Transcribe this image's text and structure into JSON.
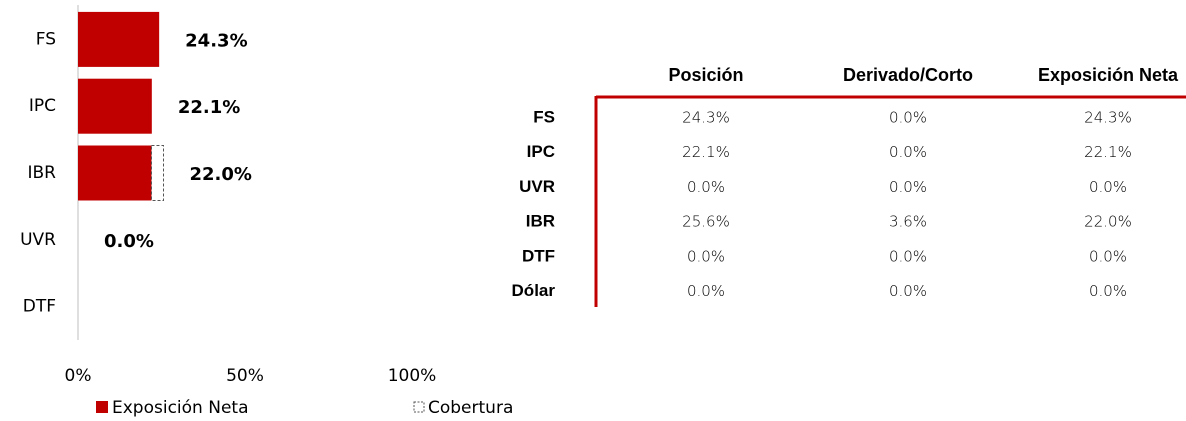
{
  "chart_data": {
    "type": "bar",
    "orientation": "horizontal",
    "stacked": true,
    "categories": [
      "FS",
      "IPC",
      "IBR",
      "UVR",
      "DTF"
    ],
    "series": [
      {
        "name": "Exposición Neta",
        "color": "#c00000",
        "values": [
          24.3,
          22.1,
          22.0,
          0.0,
          null
        ],
        "value_labels": [
          "24.3%",
          "22.1%",
          "22.0%",
          "0.0%",
          null
        ]
      },
      {
        "name": "Cobertura",
        "color": "#ffffff",
        "values": [
          0,
          0,
          3.6,
          0,
          null
        ]
      }
    ],
    "xlim": [
      0,
      100
    ],
    "xticks": [
      {
        "value": 0,
        "label": "0%"
      },
      {
        "value": 50,
        "label": "50%"
      },
      {
        "value": 100,
        "label": "100%"
      }
    ],
    "legend": "bottom"
  },
  "table": {
    "headers": [
      "Posición",
      "Derivado/Corto",
      "Exposición Neta"
    ],
    "rows": [
      {
        "label": "FS",
        "cells": [
          "24.3%",
          "0.0%",
          "24.3%"
        ]
      },
      {
        "label": "IPC",
        "cells": [
          "22.1%",
          "0.0%",
          "22.1%"
        ]
      },
      {
        "label": "UVR",
        "cells": [
          "0.0%",
          "0.0%",
          "0.0%"
        ]
      },
      {
        "label": "IBR",
        "cells": [
          "25.6%",
          "3.6%",
          "22.0%"
        ]
      },
      {
        "label": "DTF",
        "cells": [
          "0.0%",
          "0.0%",
          "0.0%"
        ]
      },
      {
        "label": "Dólar",
        "cells": [
          "0.0%",
          "0.0%",
          "0.0%"
        ]
      }
    ]
  }
}
